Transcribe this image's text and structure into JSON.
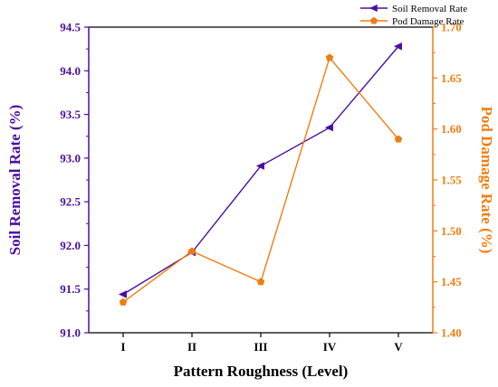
{
  "chart_data": {
    "type": "line",
    "categories": [
      "I",
      "II",
      "III",
      "IV",
      "V"
    ],
    "xlabel": "Pattern Roughness (Level)",
    "y_left": {
      "label": "Soil Removal Rate (%)",
      "lim": [
        91.0,
        94.5
      ],
      "ticks": [
        "91.0",
        "91.5",
        "92.0",
        "92.5",
        "93.0",
        "93.5",
        "94.0",
        "94.5"
      ],
      "tick_values": [
        91.0,
        91.5,
        92.0,
        92.5,
        93.0,
        93.5,
        94.0,
        94.5
      ],
      "color": "#4b0f9e"
    },
    "y_right": {
      "label": "Pod Damage Rate (%)",
      "lim": [
        1.4,
        1.7
      ],
      "ticks": [
        "1.40",
        "1.45",
        "1.50",
        "1.55",
        "1.60",
        "1.65",
        "1.70"
      ],
      "tick_values": [
        1.4,
        1.45,
        1.5,
        1.55,
        1.6,
        1.65,
        1.7
      ],
      "color": "#f07d10"
    },
    "series": [
      {
        "name": "Soil Removal Rate",
        "axis": "left",
        "marker": "left-triangle",
        "color": "#4b0f9e",
        "values": [
          91.44,
          91.92,
          92.91,
          93.35,
          94.28
        ]
      },
      {
        "name": "Pod Damage Rate",
        "axis": "right",
        "marker": "pentagon",
        "color": "#f07d10",
        "values": [
          1.43,
          1.48,
          1.45,
          1.67,
          1.59
        ]
      }
    ],
    "legend_position": "top-right",
    "grid": false
  }
}
